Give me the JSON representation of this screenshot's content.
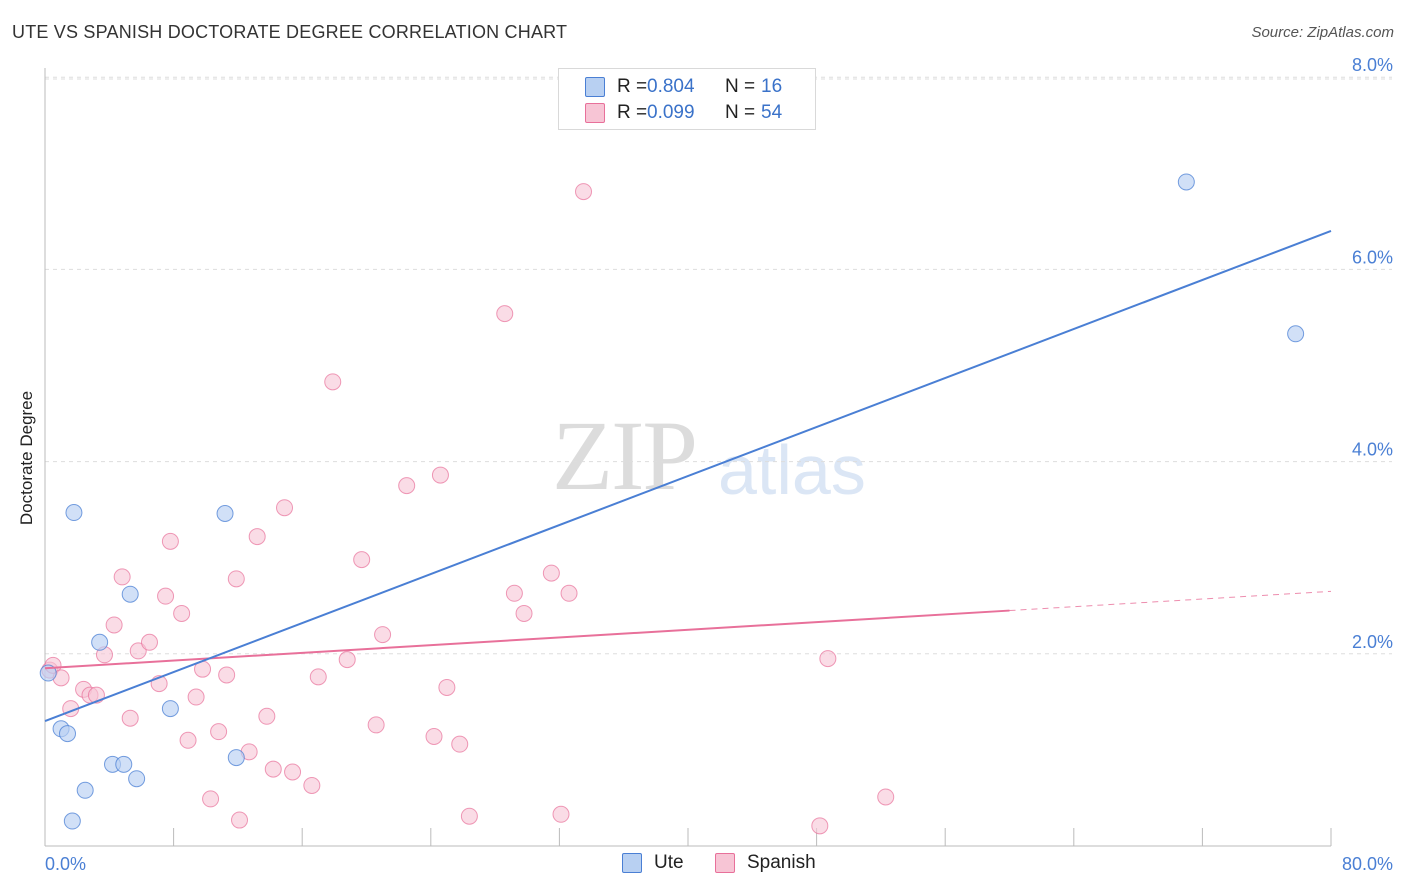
{
  "header": {
    "title": "UTE VS SPANISH DOCTORATE DEGREE CORRELATION CHART",
    "source": "Source: ZipAtlas.com"
  },
  "watermark": {
    "zip": "ZIP",
    "atlas": "atlas"
  },
  "colors": {
    "ute": "#4a7fd4",
    "ute_fill": "#b8d0f2",
    "spanish": "#e8709a",
    "spanish_fill": "#f7c5d5",
    "grid": "#dddddd",
    "tick_label": "#4a7fd4"
  },
  "legend_top": {
    "rows": [
      {
        "r_label": "R =",
        "r_value": "0.804",
        "n_label": "N =",
        "n_value": "16"
      },
      {
        "r_label": "R =",
        "r_value": "0.099",
        "n_label": "N =",
        "n_value": "54"
      }
    ]
  },
  "legend_bottom": {
    "ute": "Ute",
    "spanish": "Spanish"
  },
  "chart_data": {
    "type": "scatter",
    "title": "UTE VS SPANISH DOCTORATE DEGREE CORRELATION CHART",
    "xlabel": "",
    "ylabel": "Doctorate Degree",
    "xlim": [
      0,
      80
    ],
    "ylim": [
      0,
      8.2
    ],
    "x_tick_labels": [
      "0.0%",
      "80.0%"
    ],
    "y_ticks": [
      2,
      4,
      6,
      8
    ],
    "y_tick_labels": [
      "2.0%",
      "4.0%",
      "6.0%",
      "8.0%"
    ],
    "grid": true,
    "series": [
      {
        "name": "Ute",
        "points": [
          [
            0.2,
            1.8
          ],
          [
            1.0,
            1.22
          ],
          [
            1.4,
            1.17
          ],
          [
            1.8,
            3.47
          ],
          [
            2.5,
            0.58
          ],
          [
            1.7,
            0.26
          ],
          [
            3.4,
            2.12
          ],
          [
            4.2,
            0.85
          ],
          [
            4.9,
            0.85
          ],
          [
            5.3,
            2.62
          ],
          [
            5.7,
            0.7
          ],
          [
            7.8,
            1.43
          ],
          [
            11.2,
            3.46
          ],
          [
            11.9,
            0.92
          ],
          [
            71.0,
            6.91
          ],
          [
            77.8,
            5.33
          ]
        ],
        "trend": {
          "x": [
            0,
            80
          ],
          "y": [
            1.3,
            6.4
          ]
        }
      },
      {
        "name": "Spanish",
        "points": [
          [
            0.3,
            1.83
          ],
          [
            0.5,
            1.88
          ],
          [
            1.0,
            1.75
          ],
          [
            1.6,
            1.43
          ],
          [
            2.4,
            1.63
          ],
          [
            2.8,
            1.57
          ],
          [
            3.2,
            1.57
          ],
          [
            3.7,
            1.99
          ],
          [
            4.3,
            2.3
          ],
          [
            4.8,
            2.8
          ],
          [
            5.3,
            1.33
          ],
          [
            5.8,
            2.03
          ],
          [
            6.5,
            2.12
          ],
          [
            7.1,
            1.69
          ],
          [
            7.5,
            2.6
          ],
          [
            7.8,
            3.17
          ],
          [
            8.5,
            2.42
          ],
          [
            8.9,
            1.1
          ],
          [
            9.4,
            1.55
          ],
          [
            9.8,
            1.84
          ],
          [
            10.3,
            0.49
          ],
          [
            10.8,
            1.19
          ],
          [
            11.3,
            1.78
          ],
          [
            11.9,
            2.78
          ],
          [
            12.1,
            0.27
          ],
          [
            12.7,
            0.98
          ],
          [
            13.2,
            3.22
          ],
          [
            13.8,
            1.35
          ],
          [
            14.2,
            0.8
          ],
          [
            14.9,
            3.52
          ],
          [
            15.4,
            0.77
          ],
          [
            16.6,
            0.63
          ],
          [
            17.0,
            1.76
          ],
          [
            17.9,
            4.83
          ],
          [
            18.8,
            1.94
          ],
          [
            19.7,
            2.98
          ],
          [
            20.6,
            1.26
          ],
          [
            21.0,
            2.2
          ],
          [
            22.5,
            3.75
          ],
          [
            24.2,
            1.14
          ],
          [
            24.6,
            3.86
          ],
          [
            25.0,
            1.65
          ],
          [
            25.8,
            1.06
          ],
          [
            26.4,
            0.31
          ],
          [
            28.6,
            5.54
          ],
          [
            29.2,
            2.63
          ],
          [
            29.8,
            2.42
          ],
          [
            31.5,
            2.84
          ],
          [
            32.1,
            0.33
          ],
          [
            32.6,
            2.63
          ],
          [
            33.5,
            6.81
          ],
          [
            48.2,
            0.21
          ],
          [
            48.7,
            1.95
          ],
          [
            52.3,
            0.51
          ]
        ],
        "trend": {
          "x": [
            0,
            60
          ],
          "y": [
            1.85,
            2.45
          ]
        },
        "trend_dashed": {
          "x": [
            60,
            80
          ],
          "y": [
            2.45,
            2.65
          ]
        }
      }
    ]
  }
}
